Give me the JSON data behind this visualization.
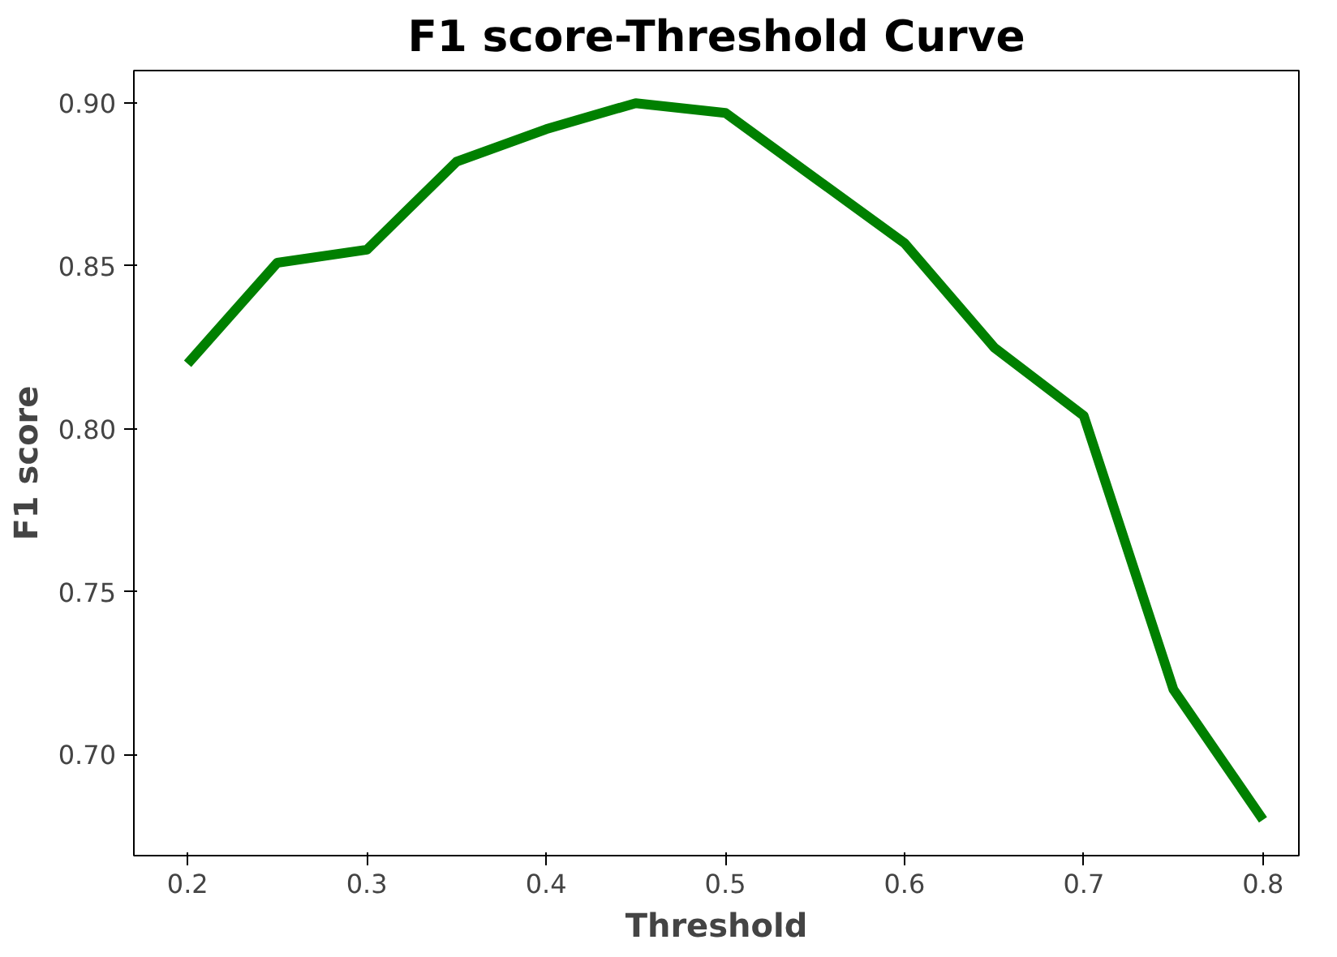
{
  "chart_data": {
    "type": "line",
    "title": "F1 score-Threshold Curve",
    "xlabel": "Threshold",
    "ylabel": "F1 score",
    "x": [
      0.2,
      0.25,
      0.3,
      0.35,
      0.4,
      0.45,
      0.5,
      0.55,
      0.6,
      0.65,
      0.7,
      0.75,
      0.8
    ],
    "series": [
      {
        "color": "#008000",
        "values": [
          0.82,
          0.851,
          0.855,
          0.882,
          0.892,
          0.9,
          0.897,
          0.877,
          0.857,
          0.825,
          0.804,
          0.72,
          0.68
        ]
      }
    ],
    "xlim": [
      0.17,
      0.82
    ],
    "ylim": [
      0.669,
      0.91
    ],
    "xticks": [
      0.2,
      0.3,
      0.4,
      0.5,
      0.6,
      0.7,
      0.8
    ],
    "yticks": [
      {
        "value": 0.7,
        "label": "0.70"
      },
      {
        "value": 0.75,
        "label": "0.75"
      },
      {
        "value": 0.8,
        "label": "0.80"
      },
      {
        "value": 0.85,
        "label": "0.85"
      },
      {
        "value": 0.9,
        "label": "0.90"
      }
    ],
    "grid": false,
    "marker": "none",
    "line_style": "solid"
  }
}
